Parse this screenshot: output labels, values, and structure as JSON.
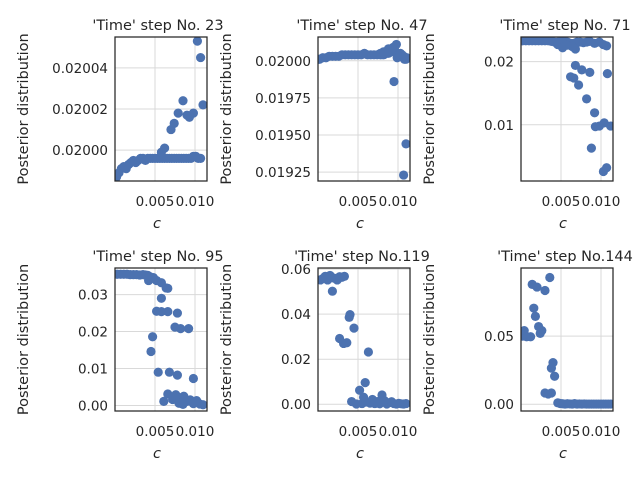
{
  "colors": {
    "marker": "#4c72b0",
    "grid": "#d9d9d9",
    "spine": "#262626"
  },
  "chart_data": [
    {
      "type": "scatter",
      "title": "'Time' step No. 23",
      "xlabel": "c",
      "ylabel": "Posterior distribution",
      "xlim": [
        0,
        0.0115
      ],
      "ylim": [
        0.019985,
        0.020055
      ],
      "xticks": [
        0.005,
        0.01
      ],
      "xtick_labels": [
        "0.005",
        "0.010"
      ],
      "yticks": [
        0.02,
        0.02002,
        0.02004
      ],
      "ytick_labels": [
        "0.02000",
        "0.02002",
        "0.02004"
      ],
      "grid": true,
      "points": [
        [
          0.0002,
          0.019987
        ],
        [
          0.0005,
          0.019989
        ],
        [
          0.0008,
          0.019991
        ],
        [
          0.0011,
          0.019992
        ],
        [
          0.0014,
          0.019991
        ],
        [
          0.0017,
          0.019993
        ],
        [
          0.002,
          0.019994
        ],
        [
          0.0023,
          0.019995
        ],
        [
          0.0026,
          0.019994
        ],
        [
          0.0029,
          0.019995
        ],
        [
          0.0032,
          0.019996
        ],
        [
          0.0035,
          0.019996
        ],
        [
          0.0038,
          0.019995
        ],
        [
          0.0041,
          0.019996
        ],
        [
          0.0044,
          0.019996
        ],
        [
          0.0047,
          0.019996
        ],
        [
          0.005,
          0.019996
        ],
        [
          0.0053,
          0.019996
        ],
        [
          0.0056,
          0.019996
        ],
        [
          0.0059,
          0.019996
        ],
        [
          0.0062,
          0.019996
        ],
        [
          0.0065,
          0.019996
        ],
        [
          0.0068,
          0.019996
        ],
        [
          0.0071,
          0.019996
        ],
        [
          0.0074,
          0.019996
        ],
        [
          0.0077,
          0.019996
        ],
        [
          0.008,
          0.019996
        ],
        [
          0.0083,
          0.019996
        ],
        [
          0.0086,
          0.019996
        ],
        [
          0.0089,
          0.019996
        ],
        [
          0.0092,
          0.019996
        ],
        [
          0.0095,
          0.019996
        ],
        [
          0.0098,
          0.019997
        ],
        [
          0.0101,
          0.019997
        ],
        [
          0.0104,
          0.019996
        ],
        [
          0.0107,
          0.019996
        ],
        [
          0.0058,
          0.019999
        ],
        [
          0.0062,
          0.020001
        ],
        [
          0.007,
          0.02001
        ],
        [
          0.0074,
          0.020013
        ],
        [
          0.0079,
          0.020018
        ],
        [
          0.0085,
          0.020024
        ],
        [
          0.009,
          0.020017
        ],
        [
          0.0093,
          0.020016
        ],
        [
          0.0098,
          0.020018
        ],
        [
          0.0103,
          0.020053
        ],
        [
          0.0107,
          0.020045
        ],
        [
          0.011,
          0.020022
        ]
      ]
    },
    {
      "type": "scatter",
      "title": "'Time' step No. 47",
      "xlabel": "c",
      "ylabel": "Posterior distribution",
      "xlim": [
        0,
        0.0115
      ],
      "ylim": [
        0.01919,
        0.02016
      ],
      "xticks": [
        0.005,
        0.01
      ],
      "xtick_labels": [
        "0.005",
        "0.010"
      ],
      "yticks": [
        0.01925,
        0.0195,
        0.01975,
        0.02
      ],
      "ytick_labels": [
        "0.01925",
        "0.01950",
        "0.01975",
        "0.02000"
      ],
      "grid": true,
      "points": [
        [
          0.0002,
          0.02001
        ],
        [
          0.0006,
          0.02002
        ],
        [
          0.001,
          0.02002
        ],
        [
          0.0014,
          0.02003
        ],
        [
          0.0018,
          0.02003
        ],
        [
          0.0022,
          0.02003
        ],
        [
          0.0026,
          0.02003
        ],
        [
          0.003,
          0.02004
        ],
        [
          0.0034,
          0.02004
        ],
        [
          0.0038,
          0.02004
        ],
        [
          0.0042,
          0.02004
        ],
        [
          0.0046,
          0.02004
        ],
        [
          0.005,
          0.02004
        ],
        [
          0.0054,
          0.02004
        ],
        [
          0.0058,
          0.02005
        ],
        [
          0.0062,
          0.02004
        ],
        [
          0.0066,
          0.02004
        ],
        [
          0.007,
          0.02004
        ],
        [
          0.0074,
          0.02004
        ],
        [
          0.0078,
          0.02004
        ],
        [
          0.0082,
          0.02004
        ],
        [
          0.0086,
          0.02005
        ],
        [
          0.0089,
          0.02006
        ],
        [
          0.0092,
          0.02006
        ],
        [
          0.0096,
          0.02007
        ],
        [
          0.0099,
          0.02002
        ],
        [
          0.0102,
          0.02003
        ],
        [
          0.0105,
          0.02004
        ],
        [
          0.0108,
          0.02001
        ],
        [
          0.011,
          0.02001
        ],
        [
          0.0084,
          0.02005
        ],
        [
          0.0088,
          0.02008
        ],
        [
          0.0094,
          0.02009
        ],
        [
          0.0098,
          0.02011
        ],
        [
          0.0103,
          0.02005
        ],
        [
          0.0107,
          0.02003
        ],
        [
          0.0111,
          0.02002
        ],
        [
          0.0078,
          0.02005
        ],
        [
          0.0082,
          0.02006
        ],
        [
          0.0088,
          0.02005
        ],
        [
          0.0095,
          0.01986
        ],
        [
          0.0107,
          0.01923
        ],
        [
          0.011,
          0.01944
        ]
      ]
    },
    {
      "type": "scatter",
      "title": "'Time' step No. 71",
      "xlabel": "c",
      "ylabel": "Posterior distribution",
      "xlim": [
        0,
        0.0115
      ],
      "ylim": [
        0.0011,
        0.0239
      ],
      "xticks": [
        0.005,
        0.01
      ],
      "xtick_labels": [
        "0.005",
        "0.010"
      ],
      "yticks": [
        0.01,
        0.02
      ],
      "ytick_labels": [
        "0.01",
        "0.02"
      ],
      "grid": true,
      "points": [
        [
          0.0002,
          0.0233
        ],
        [
          0.0006,
          0.0233
        ],
        [
          0.001,
          0.0233
        ],
        [
          0.0014,
          0.0233
        ],
        [
          0.0018,
          0.0233
        ],
        [
          0.0022,
          0.0233
        ],
        [
          0.0026,
          0.0233
        ],
        [
          0.003,
          0.0233
        ],
        [
          0.0034,
          0.0233
        ],
        [
          0.0038,
          0.0232
        ],
        [
          0.0042,
          0.0231
        ],
        [
          0.0046,
          0.0231
        ],
        [
          0.005,
          0.0232
        ],
        [
          0.0054,
          0.0232
        ],
        [
          0.0058,
          0.0231
        ],
        [
          0.0062,
          0.0229
        ],
        [
          0.0066,
          0.0229
        ],
        [
          0.007,
          0.0231
        ],
        [
          0.0074,
          0.0231
        ],
        [
          0.0078,
          0.023
        ],
        [
          0.0082,
          0.0231
        ],
        [
          0.0086,
          0.0232
        ],
        [
          0.0092,
          0.0229
        ],
        [
          0.0098,
          0.0231
        ],
        [
          0.0103,
          0.0227
        ],
        [
          0.0107,
          0.0225
        ],
        [
          0.0046,
          0.0227
        ],
        [
          0.0052,
          0.0222
        ],
        [
          0.0058,
          0.0226
        ],
        [
          0.0064,
          0.0224
        ],
        [
          0.0068,
          0.022
        ],
        [
          0.0062,
          0.0176
        ],
        [
          0.0066,
          0.0174
        ],
        [
          0.0068,
          0.0194
        ],
        [
          0.0072,
          0.0163
        ],
        [
          0.0076,
          0.0187
        ],
        [
          0.0086,
          0.0183
        ],
        [
          0.0082,
          0.0141
        ],
        [
          0.0092,
          0.0119
        ],
        [
          0.0098,
          0.0098
        ],
        [
          0.0104,
          0.0103
        ],
        [
          0.0108,
          0.0181
        ],
        [
          0.0112,
          0.0098
        ],
        [
          0.0088,
          0.0063
        ],
        [
          0.0093,
          0.0097
        ],
        [
          0.0103,
          0.0026
        ],
        [
          0.0107,
          0.0032
        ]
      ]
    },
    {
      "type": "scatter",
      "title": "'Time' step No. 95",
      "xlabel": "c",
      "ylabel": "Posterior distribution",
      "xlim": [
        0,
        0.0115
      ],
      "ylim": [
        -0.0015,
        0.0372
      ],
      "xticks": [
        0.005,
        0.01
      ],
      "xtick_labels": [
        "0.005",
        "0.010"
      ],
      "yticks": [
        0,
        0.01,
        0.02,
        0.03
      ],
      "ytick_labels": [
        "0.00",
        "0.01",
        "0.02",
        "0.03"
      ],
      "grid": true,
      "points": [
        [
          0.0003,
          0.0355
        ],
        [
          0.0007,
          0.0355
        ],
        [
          0.0011,
          0.0355
        ],
        [
          0.0015,
          0.0355
        ],
        [
          0.0019,
          0.0354
        ],
        [
          0.0023,
          0.0354
        ],
        [
          0.0027,
          0.0354
        ],
        [
          0.0031,
          0.0353
        ],
        [
          0.0035,
          0.0354
        ],
        [
          0.0038,
          0.0353
        ],
        [
          0.0041,
          0.0352
        ],
        [
          0.0044,
          0.0348
        ],
        [
          0.0048,
          0.0346
        ],
        [
          0.0042,
          0.0338
        ],
        [
          0.0052,
          0.0338
        ],
        [
          0.0058,
          0.0332
        ],
        [
          0.0064,
          0.0318
        ],
        [
          0.0058,
          0.029
        ],
        [
          0.0066,
          0.0317
        ],
        [
          0.0052,
          0.0255
        ],
        [
          0.0058,
          0.0254
        ],
        [
          0.0066,
          0.0254
        ],
        [
          0.0075,
          0.0212
        ],
        [
          0.0078,
          0.025
        ],
        [
          0.0082,
          0.0208
        ],
        [
          0.0092,
          0.0208
        ],
        [
          0.0047,
          0.0186
        ],
        [
          0.0045,
          0.0146
        ],
        [
          0.0054,
          0.009
        ],
        [
          0.0068,
          0.009
        ],
        [
          0.0078,
          0.0082
        ],
        [
          0.0098,
          0.0073
        ],
        [
          0.0061,
          0.0011
        ],
        [
          0.0066,
          0.0031
        ],
        [
          0.0072,
          0.0016
        ],
        [
          0.0076,
          0.0029
        ],
        [
          0.0081,
          0.0021
        ],
        [
          0.0086,
          0.0025
        ],
        [
          0.009,
          0.0011
        ],
        [
          0.0094,
          0.0015
        ],
        [
          0.0098,
          0.0005
        ],
        [
          0.0102,
          0.0013
        ],
        [
          0.0106,
          0.0004
        ],
        [
          0.011,
          0.0002
        ],
        [
          0.0085,
          0.0003
        ],
        [
          0.008,
          0.0006
        ]
      ]
    },
    {
      "type": "scatter",
      "title": "'Time' step No.119",
      "xlabel": "c",
      "ylabel": "Posterior distribution",
      "xlim": [
        0,
        0.0115
      ],
      "ylim": [
        -0.003,
        0.0605
      ],
      "xticks": [
        0.005,
        0.01
      ],
      "xtick_labels": [
        "0.005",
        "0.010"
      ],
      "yticks": [
        0,
        0.02,
        0.04,
        0.06
      ],
      "ytick_labels": [
        "0.00",
        "0.02",
        "0.04",
        "0.06"
      ],
      "grid": true,
      "points": [
        [
          0.0003,
          0.0552
        ],
        [
          0.0006,
          0.0558
        ],
        [
          0.0009,
          0.0568
        ],
        [
          0.0012,
          0.0552
        ],
        [
          0.0015,
          0.0572
        ],
        [
          0.0018,
          0.0562
        ],
        [
          0.0021,
          0.0559
        ],
        [
          0.0024,
          0.0552
        ],
        [
          0.0027,
          0.0566
        ],
        [
          0.003,
          0.0564
        ],
        [
          0.0033,
          0.0568
        ],
        [
          0.0018,
          0.0502
        ],
        [
          0.0039,
          0.0386
        ],
        [
          0.004,
          0.0398
        ],
        [
          0.0045,
          0.0338
        ],
        [
          0.0027,
          0.0292
        ],
        [
          0.0032,
          0.027
        ],
        [
          0.0036,
          0.0273
        ],
        [
          0.0063,
          0.0232
        ],
        [
          0.0059,
          0.0096
        ],
        [
          0.0052,
          0.0062
        ],
        [
          0.0042,
          0.0012
        ],
        [
          0.0055,
          0.0003
        ],
        [
          0.0048,
          0.0001
        ],
        [
          0.006,
          0.001
        ],
        [
          0.0065,
          0.0005
        ],
        [
          0.0068,
          0.0021
        ],
        [
          0.0071,
          0.0003
        ],
        [
          0.0074,
          0.0012
        ],
        [
          0.0077,
          0.0002
        ],
        [
          0.008,
          0.0041
        ],
        [
          0.0083,
          0.0016
        ],
        [
          0.0086,
          0.0001
        ],
        [
          0.0089,
          0.0007
        ],
        [
          0.0092,
          0.0011
        ],
        [
          0.0095,
          0.0003
        ],
        [
          0.0098,
          0.0001
        ],
        [
          0.0101,
          0.0004
        ],
        [
          0.0104,
          0.0002
        ],
        [
          0.0107,
          0.0001
        ],
        [
          0.011,
          0.0003
        ],
        [
          0.0057,
          0.0031
        ]
      ]
    },
    {
      "type": "scatter",
      "title": "'Time' step No.144",
      "xlabel": "c",
      "ylabel": "Posterior distribution",
      "xlim": [
        0,
        0.0115
      ],
      "ylim": [
        -0.005,
        0.1
      ],
      "xticks": [
        0.005,
        0.01
      ],
      "xtick_labels": [
        "0.005",
        "0.010"
      ],
      "yticks": [
        0,
        0.05
      ],
      "ytick_labels": [
        "0.00",
        "0.05"
      ],
      "grid": true,
      "points": [
        [
          0.0002,
          0.05
        ],
        [
          0.0004,
          0.054
        ],
        [
          0.0007,
          0.0495
        ],
        [
          0.0012,
          0.0495
        ],
        [
          0.0014,
          0.088
        ],
        [
          0.0016,
          0.0705
        ],
        [
          0.0018,
          0.0645
        ],
        [
          0.002,
          0.086
        ],
        [
          0.0022,
          0.057
        ],
        [
          0.0024,
          0.052
        ],
        [
          0.0026,
          0.054
        ],
        [
          0.003,
          0.0835
        ],
        [
          0.0036,
          0.093
        ],
        [
          0.0038,
          0.0265
        ],
        [
          0.004,
          0.0305
        ],
        [
          0.0042,
          0.0205
        ],
        [
          0.003,
          0.0082
        ],
        [
          0.0034,
          0.0075
        ],
        [
          0.0038,
          0.0082
        ],
        [
          0.0046,
          0.001
        ],
        [
          0.0049,
          0.0005
        ],
        [
          0.0052,
          0.0003
        ],
        [
          0.0055,
          0.0001
        ],
        [
          0.0058,
          0.0003
        ],
        [
          0.0061,
          0.0002
        ],
        [
          0.0064,
          0.0001
        ],
        [
          0.0067,
          0.0004
        ],
        [
          0.007,
          0.0001
        ],
        [
          0.0073,
          0.0002
        ],
        [
          0.0076,
          0.0001
        ],
        [
          0.0079,
          0.0002
        ],
        [
          0.0082,
          0.0001
        ],
        [
          0.0085,
          0.0001
        ],
        [
          0.0088,
          0.0001
        ],
        [
          0.0091,
          0.0001
        ],
        [
          0.0094,
          0.0001
        ],
        [
          0.0097,
          0.0001
        ],
        [
          0.01,
          0.0001
        ],
        [
          0.0103,
          0.0001
        ],
        [
          0.0106,
          0.0001
        ],
        [
          0.0109,
          0.0001
        ],
        [
          0.0112,
          0.0001
        ]
      ]
    }
  ]
}
